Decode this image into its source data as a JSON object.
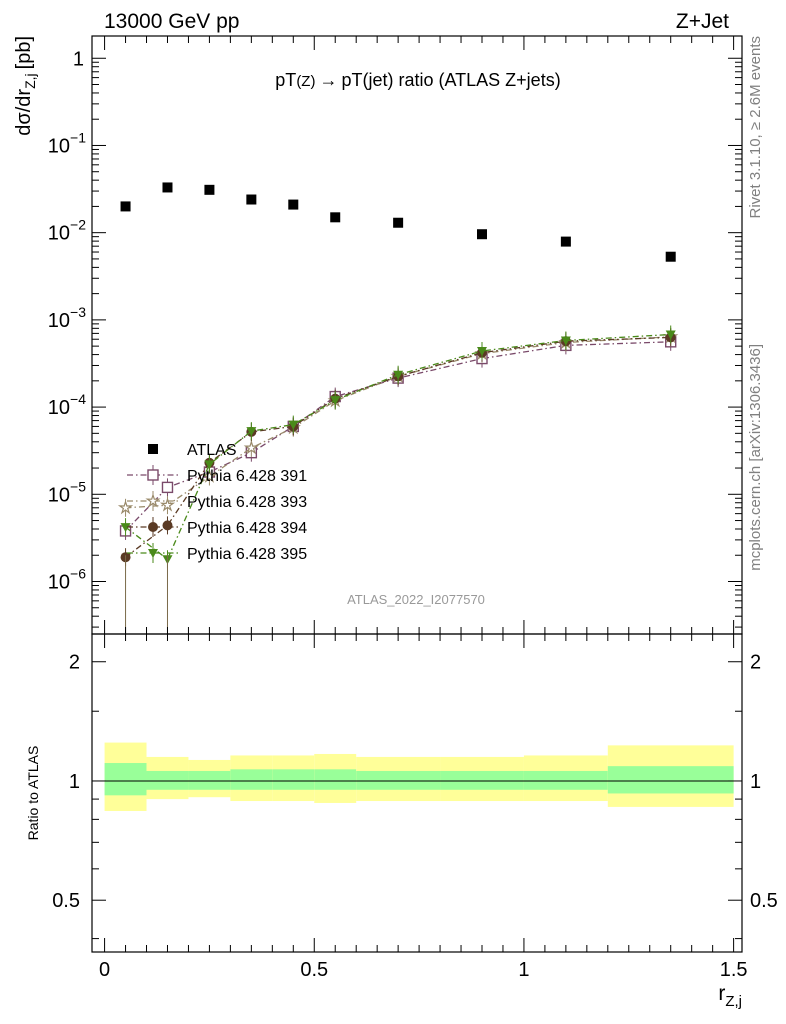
{
  "header": {
    "left": "13000 GeV pp",
    "right": "Z+Jet"
  },
  "side_labels": {
    "rivet": "Rivet 3.1.10, ≥ 2.6M events",
    "mcplots": "mcplots.cern.ch [arXiv:1306.3436]"
  },
  "watermark": "ATLAS_2022_I2077570",
  "chart_data": [
    {
      "type": "scatter",
      "title": "pT(Z) → pT(jet) ratio (ATLAS Z+jets)",
      "title_parts": {
        "a": "pT",
        "b": "(Z)",
        "c": "→",
        "d": "pT(jet) ratio (ATLAS Z+jets)"
      },
      "ylabel": "dσ/dr",
      "ylabel_sub": "Z,j",
      "ylabel_unit": "[pb]",
      "yscale": "log",
      "ylim": [
        2.5e-07,
        1.8
      ],
      "xlim": [
        -0.03,
        1.52
      ],
      "y_ticks": [
        1,
        0.1,
        0.01,
        0.001,
        0.0001,
        1e-05,
        1e-06
      ],
      "y_tick_labels": [
        {
          "base": "1",
          "exp": ""
        },
        {
          "base": "10",
          "exp": "−1"
        },
        {
          "base": "10",
          "exp": "−2"
        },
        {
          "base": "10",
          "exp": "−3"
        },
        {
          "base": "10",
          "exp": "−4"
        },
        {
          "base": "10",
          "exp": "−5"
        },
        {
          "base": "10",
          "exp": "−6"
        }
      ],
      "legend_position": "lower-left",
      "series": [
        {
          "name": "ATLAS",
          "marker": "filled-square",
          "color": "#000000",
          "line": "none",
          "x": [
            0.05,
            0.15,
            0.25,
            0.35,
            0.45,
            0.55,
            0.7,
            0.9,
            1.1,
            1.35
          ],
          "y": [
            0.02,
            0.033,
            0.031,
            0.024,
            0.021,
            0.015,
            0.013,
            0.0096,
            0.0079,
            0.0053
          ]
        },
        {
          "name": "Pythia 6.428 391",
          "marker": "open-square",
          "color": "#7a4a6a",
          "line": "dash-dot",
          "x": [
            0.05,
            0.15,
            0.25,
            0.35,
            0.45,
            0.55,
            0.7,
            0.9,
            1.1,
            1.35
          ],
          "y": [
            3.8e-06,
            1.2e-05,
            1.8e-05,
            3e-05,
            6e-05,
            0.000132,
            0.000215,
            0.00036,
            0.00051,
            0.00056
          ]
        },
        {
          "name": "Pythia 6.428 393",
          "marker": "open-star",
          "color": "#9a8a6a",
          "line": "dash-dot",
          "x": [
            0.05,
            0.15,
            0.25,
            0.35,
            0.45,
            0.55,
            0.7,
            0.9,
            1.1,
            1.35
          ],
          "y": [
            7e-06,
            7.5e-06,
            1.6e-05,
            3.4e-05,
            5.8e-05,
            0.000118,
            0.000225,
            0.00041,
            0.00055,
            0.00064
          ]
        },
        {
          "name": "Pythia 6.428 394",
          "marker": "filled-circle",
          "color": "#5a3a24",
          "line": "dash-dot",
          "x": [
            0.05,
            0.15,
            0.25,
            0.35,
            0.45,
            0.55,
            0.7,
            0.9,
            1.1,
            1.35
          ],
          "y": [
            1.9e-06,
            4.4e-06,
            2.3e-05,
            5.2e-05,
            6e-05,
            0.000125,
            0.000225,
            0.00042,
            0.00057,
            0.00063
          ]
        },
        {
          "name": "Pythia 6.428 395",
          "marker": "filled-triangle-down",
          "color": "#4a8a1a",
          "line": "dash-dot",
          "x": [
            0.05,
            0.15,
            0.25,
            0.35,
            0.45,
            0.55,
            0.7,
            0.9,
            1.1,
            1.35
          ],
          "y": [
            4.2e-06,
            1.8e-06,
            2.2e-05,
            5.3e-05,
            6.3e-05,
            0.00012,
            0.000235,
            0.00044,
            0.00058,
            0.00068
          ]
        }
      ]
    },
    {
      "type": "area",
      "ylabel": "Ratio to ATLAS",
      "xlabel": "r",
      "xlabel_sub": "Z,j",
      "yscale": "log",
      "ylim": [
        0.37,
        2.35
      ],
      "xlim": [
        -0.03,
        1.52
      ],
      "y_ticks": [
        {
          "v": 2,
          "label": "2"
        },
        {
          "v": 1,
          "label": "1"
        },
        {
          "v": 0.5,
          "label": "0.5"
        }
      ],
      "x_ticks": [
        {
          "v": 0,
          "label": "0"
        },
        {
          "v": 0.5,
          "label": "0.5"
        },
        {
          "v": 1,
          "label": "1"
        },
        {
          "v": 1.5,
          "label": "1.5"
        }
      ],
      "reference_line": 1,
      "bins": [
        {
          "lo": 0.0,
          "hi": 0.1,
          "in_lo": 0.92,
          "in_hi": 1.11,
          "out_lo": 0.84,
          "out_hi": 1.25
        },
        {
          "lo": 0.1,
          "hi": 0.2,
          "in_lo": 0.95,
          "in_hi": 1.06,
          "out_lo": 0.9,
          "out_hi": 1.15
        },
        {
          "lo": 0.2,
          "hi": 0.3,
          "in_lo": 0.95,
          "in_hi": 1.06,
          "out_lo": 0.91,
          "out_hi": 1.13
        },
        {
          "lo": 0.3,
          "hi": 0.4,
          "in_lo": 0.95,
          "in_hi": 1.07,
          "out_lo": 0.89,
          "out_hi": 1.16
        },
        {
          "lo": 0.4,
          "hi": 0.5,
          "in_lo": 0.95,
          "in_hi": 1.07,
          "out_lo": 0.89,
          "out_hi": 1.16
        },
        {
          "lo": 0.5,
          "hi": 0.6,
          "in_lo": 0.95,
          "in_hi": 1.07,
          "out_lo": 0.88,
          "out_hi": 1.17
        },
        {
          "lo": 0.6,
          "hi": 0.8,
          "in_lo": 0.95,
          "in_hi": 1.06,
          "out_lo": 0.89,
          "out_hi": 1.15
        },
        {
          "lo": 0.8,
          "hi": 1.0,
          "in_lo": 0.95,
          "in_hi": 1.06,
          "out_lo": 0.89,
          "out_hi": 1.15
        },
        {
          "lo": 1.0,
          "hi": 1.2,
          "in_lo": 0.95,
          "in_hi": 1.06,
          "out_lo": 0.89,
          "out_hi": 1.16
        },
        {
          "lo": 1.2,
          "hi": 1.5,
          "in_lo": 0.93,
          "in_hi": 1.09,
          "out_lo": 0.86,
          "out_hi": 1.23
        }
      ],
      "band_colors": {
        "inner": "#99ff99",
        "outer": "#ffff99"
      }
    }
  ]
}
